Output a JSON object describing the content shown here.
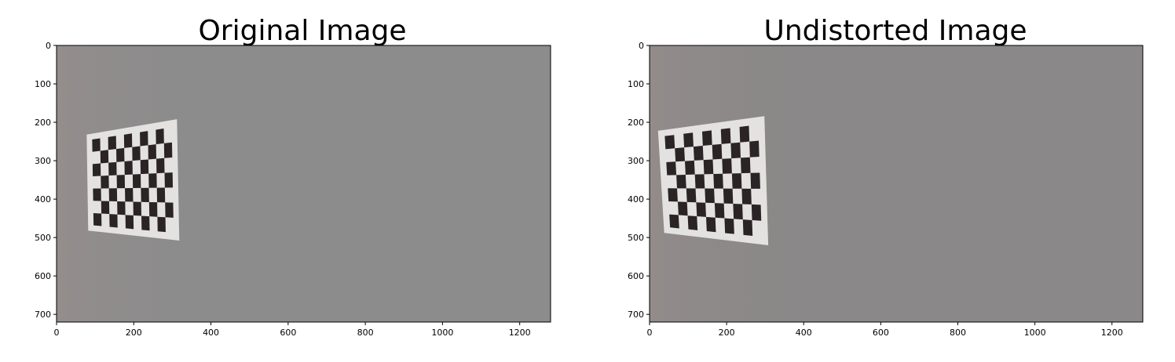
{
  "chart_data": [
    {
      "type": "image",
      "title": "Original Image",
      "xlim": [
        0,
        1280
      ],
      "ylim": [
        720,
        0
      ],
      "xticks": [
        0,
        200,
        400,
        600,
        800,
        1000,
        1200
      ],
      "yticks": [
        0,
        100,
        200,
        300,
        400,
        500,
        600,
        700
      ],
      "xtick_labels": [
        "0",
        "200",
        "400",
        "600",
        "800",
        "1000",
        "1200"
      ],
      "ytick_labels": [
        "0",
        "100",
        "200",
        "300",
        "400",
        "500",
        "600",
        "700"
      ],
      "image_content": {
        "background_color": "#8c8c8c",
        "checkerboard": {
          "rows": 6,
          "cols": 9,
          "corners": {
            "tl": [
              78,
              232
            ],
            "tr": [
              312,
              192
            ],
            "br": [
              318,
              508
            ],
            "bl": [
              82,
              482
            ]
          }
        }
      }
    },
    {
      "type": "image",
      "title": "Undistorted Image",
      "xlim": [
        0,
        1280
      ],
      "ylim": [
        720,
        0
      ],
      "xticks": [
        0,
        200,
        400,
        600,
        800,
        1000,
        1200
      ],
      "yticks": [
        0,
        100,
        200,
        300,
        400,
        500,
        600,
        700
      ],
      "xtick_labels": [
        "0",
        "200",
        "400",
        "600",
        "800",
        "1000",
        "1200"
      ],
      "ytick_labels": [
        "0",
        "100",
        "200",
        "300",
        "400",
        "500",
        "600",
        "700"
      ],
      "image_content": {
        "background_color": "#8a8888",
        "checkerboard": {
          "rows": 6,
          "cols": 9,
          "corners": {
            "tl": [
              22,
              222
            ],
            "tr": [
              298,
              184
            ],
            "br": [
              308,
              520
            ],
            "bl": [
              38,
              488
            ]
          }
        }
      }
    }
  ]
}
